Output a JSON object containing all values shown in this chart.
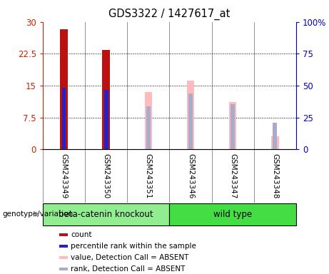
{
  "title": "GDS3322 / 1427617_at",
  "samples": [
    "GSM243349",
    "GSM243350",
    "GSM243351",
    "GSM243346",
    "GSM243347",
    "GSM243348"
  ],
  "groups": [
    0,
    0,
    0,
    1,
    1,
    1
  ],
  "group_labels": [
    "beta-catenin knockout",
    "wild type"
  ],
  "group_colors": [
    "#90ee90",
    "#44dd44"
  ],
  "red_bar_values": [
    28.2,
    23.4,
    0,
    0,
    0,
    0
  ],
  "blue_marker_values_pct": [
    48.5,
    46.5,
    0,
    0,
    0,
    0
  ],
  "pink_bar_values": [
    0,
    0,
    13.5,
    16.2,
    11.2,
    3.1
  ],
  "lavender_marker_values_pct": [
    0,
    0,
    34.0,
    44.0,
    35.5,
    21.0
  ],
  "red_bar_color": "#bb1111",
  "blue_marker_color": "#2222cc",
  "pink_bar_color": "#ffbbbb",
  "lavender_marker_color": "#aaaacc",
  "ylim_left": [
    0,
    30
  ],
  "ylim_right": [
    0,
    100
  ],
  "yticks_left": [
    0,
    7.5,
    15,
    22.5,
    30
  ],
  "yticks_left_labels": [
    "0",
    "7.5",
    "15",
    "22.5",
    "30"
  ],
  "yticks_right": [
    0,
    25,
    50,
    75,
    100
  ],
  "yticks_right_labels": [
    "0",
    "25",
    "50",
    "75",
    "100%"
  ],
  "left_axis_color": "#cc2200",
  "right_axis_color": "#0000bb",
  "red_bar_width": 0.18,
  "blue_bar_width": 0.1,
  "pink_bar_width": 0.18,
  "lavender_bar_width": 0.1,
  "genotype_label": "genotype/variation",
  "legend_items": [
    {
      "label": "count",
      "color": "#bb1111"
    },
    {
      "label": "percentile rank within the sample",
      "color": "#2222cc"
    },
    {
      "label": "value, Detection Call = ABSENT",
      "color": "#ffbbbb"
    },
    {
      "label": "rank, Detection Call = ABSENT",
      "color": "#aaaacc"
    }
  ],
  "sample_label_bg": "#cccccc",
  "plot_bg_color": "#ffffff",
  "white": "#ffffff"
}
